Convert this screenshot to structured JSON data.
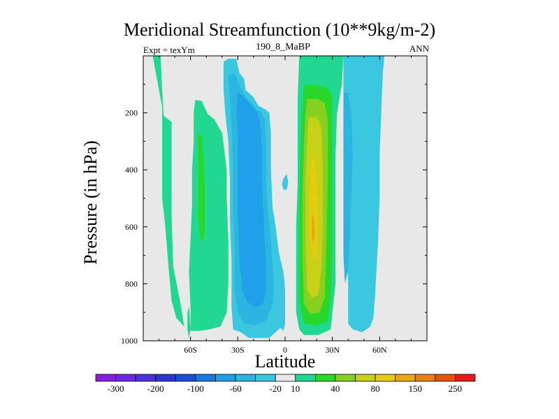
{
  "chart_data": {
    "type": "contour",
    "title": "Meridional Streamfunction (10**9kg/m-2)",
    "left_label": "Expt = texYm",
    "center_label": "190_8_MaBP",
    "right_label": "ANN",
    "xlabel": "Latitude",
    "ylabel": "Pressure (in hPa)",
    "x_range": [
      -90,
      90
    ],
    "y_range": [
      0,
      1000
    ],
    "y_reversed": true,
    "x_ticks": [
      {
        "value": -60,
        "label": "60S"
      },
      {
        "value": -30,
        "label": "30S"
      },
      {
        "value": 0,
        "label": "0"
      },
      {
        "value": 30,
        "label": "30N"
      },
      {
        "value": 60,
        "label": "60N"
      }
    ],
    "y_ticks": [
      {
        "value": 200,
        "label": "200"
      },
      {
        "value": 400,
        "label": "400"
      },
      {
        "value": 600,
        "label": "600"
      },
      {
        "value": 800,
        "label": "800"
      },
      {
        "value": 1000,
        "label": "1000"
      }
    ],
    "colorbar": {
      "colors": [
        "#8a1ee0",
        "#6a28e8",
        "#4a32e0",
        "#2838d0",
        "#1a50d8",
        "#1a78e0",
        "#20a0e8",
        "#2ab6e0",
        "#3ac8e0",
        "#e8e8e8",
        "#20d890",
        "#28d828",
        "#88d020",
        "#c8d018",
        "#e6cc10",
        "#e8a810",
        "#e88010",
        "#e85010",
        "#e81818"
      ],
      "labels": [
        {
          "after_index": 0,
          "text": "-300"
        },
        {
          "after_index": 2,
          "text": "-200"
        },
        {
          "after_index": 4,
          "text": "-100"
        },
        {
          "after_index": 6,
          "text": "-60"
        },
        {
          "after_index": 8,
          "text": "-20"
        },
        {
          "after_index": 9,
          "text": "10"
        },
        {
          "after_index": 11,
          "text": "40"
        },
        {
          "after_index": 13,
          "text": "80"
        },
        {
          "after_index": 15,
          "text": "150"
        },
        {
          "after_index": 17,
          "text": "250"
        }
      ]
    },
    "regions": [
      {
        "name": "sh-polar-positive",
        "level": 10,
        "color": "#20d890",
        "outline": [
          [
            -84,
            0
          ],
          [
            -79,
            0
          ],
          [
            -78,
            120
          ],
          [
            -77,
            210
          ],
          [
            -72,
            232
          ],
          [
            -72,
            350
          ],
          [
            -72,
            560
          ],
          [
            -71,
            740
          ],
          [
            -66,
            880
          ],
          [
            -64,
            950
          ],
          [
            -69,
            920
          ],
          [
            -72,
            860
          ],
          [
            -74,
            740
          ],
          [
            -76,
            600
          ],
          [
            -78,
            500
          ],
          [
            -78,
            300
          ],
          [
            -78,
            180
          ]
        ]
      },
      {
        "name": "sh-ferrel-positive",
        "level": 10,
        "color": "#20d890",
        "outline": [
          [
            -57,
            155
          ],
          [
            -53,
            158
          ],
          [
            -49,
            205
          ],
          [
            -45,
            222
          ],
          [
            -40,
            270
          ],
          [
            -37,
            400
          ],
          [
            -37,
            500
          ],
          [
            -36,
            650
          ],
          [
            -36,
            800
          ],
          [
            -37,
            900
          ],
          [
            -41,
            950
          ],
          [
            -48,
            960
          ],
          [
            -54,
            965
          ],
          [
            -60,
            965
          ],
          [
            -60,
            880
          ],
          [
            -61,
            760
          ],
          [
            -60,
            640
          ],
          [
            -59,
            520
          ],
          [
            -59,
            400
          ],
          [
            -58,
            300
          ],
          [
            -58,
            200
          ]
        ]
      },
      {
        "name": "sh-ferrel-core",
        "level": 40,
        "color": "#28d828",
        "outline": [
          [
            -55,
            270
          ],
          [
            -53,
            280
          ],
          [
            -52,
            350
          ],
          [
            -51,
            450
          ],
          [
            -51,
            550
          ],
          [
            -51,
            620
          ],
          [
            -52,
            650
          ],
          [
            -54,
            640
          ],
          [
            -55,
            560
          ],
          [
            -55,
            450
          ],
          [
            -55,
            350
          ]
        ]
      },
      {
        "name": "sh-polar-band-low",
        "level": 10,
        "color": "#20d890",
        "outline": [
          [
            -61,
            880
          ],
          [
            -60,
            960
          ],
          [
            -61,
            990
          ],
          [
            -62,
            960
          ],
          [
            -62,
            900
          ]
        ]
      },
      {
        "name": "sh-hadley-negative",
        "level": -20,
        "color": "#3ac8e0",
        "outline": [
          [
            -39,
            20
          ],
          [
            -36,
            10
          ],
          [
            -31,
            10
          ],
          [
            -29,
            60
          ],
          [
            -26,
            80
          ],
          [
            -25,
            120
          ],
          [
            -20,
            145
          ],
          [
            -17,
            175
          ],
          [
            -12,
            190
          ],
          [
            -10,
            200
          ],
          [
            -9,
            270
          ],
          [
            -9,
            400
          ],
          [
            -8,
            530
          ],
          [
            -6,
            600
          ],
          [
            -4,
            690
          ],
          [
            -1,
            760
          ],
          [
            0,
            820
          ],
          [
            0,
            940
          ],
          [
            -1,
            965
          ],
          [
            -3,
            955
          ],
          [
            -7,
            975
          ],
          [
            -10,
            990
          ],
          [
            -19,
            990
          ],
          [
            -23,
            990
          ],
          [
            -28,
            970
          ],
          [
            -33,
            960
          ],
          [
            -34,
            880
          ],
          [
            -34,
            720
          ],
          [
            -35,
            580
          ],
          [
            -35,
            440
          ],
          [
            -36,
            300
          ],
          [
            -38,
            200
          ],
          [
            -39,
            120
          ]
        ]
      },
      {
        "name": "sh-hadley-mid",
        "level": -60,
        "color": "#2ab6e0",
        "outline": [
          [
            -36,
            70
          ],
          [
            -32,
            60
          ],
          [
            -29,
            100
          ],
          [
            -25,
            145
          ],
          [
            -21,
            165
          ],
          [
            -18,
            190
          ],
          [
            -15,
            200
          ],
          [
            -13,
            225
          ],
          [
            -12,
            300
          ],
          [
            -12,
            420
          ],
          [
            -11,
            540
          ],
          [
            -9,
            640
          ],
          [
            -8,
            720
          ],
          [
            -7,
            810
          ],
          [
            -8,
            880
          ],
          [
            -10,
            900
          ],
          [
            -12,
            930
          ],
          [
            -19,
            945
          ],
          [
            -26,
            940
          ],
          [
            -30,
            900
          ],
          [
            -32,
            820
          ],
          [
            -32,
            680
          ],
          [
            -33,
            520
          ],
          [
            -33,
            380
          ],
          [
            -34,
            250
          ],
          [
            -35,
            150
          ]
        ]
      },
      {
        "name": "sh-hadley-strong",
        "level": -100,
        "color": "#20a0e8",
        "outline": [
          [
            -30,
            130
          ],
          [
            -27,
            140
          ],
          [
            -22,
            170
          ],
          [
            -18,
            195
          ],
          [
            -16,
            230
          ],
          [
            -15,
            300
          ],
          [
            -15,
            400
          ],
          [
            -14,
            520
          ],
          [
            -13,
            640
          ],
          [
            -12,
            740
          ],
          [
            -12,
            820
          ],
          [
            -14,
            870
          ],
          [
            -18,
            880
          ],
          [
            -23,
            870
          ],
          [
            -27,
            830
          ],
          [
            -29,
            720
          ],
          [
            -30,
            560
          ],
          [
            -30,
            420
          ],
          [
            -30,
            280
          ],
          [
            -31,
            190
          ]
        ]
      },
      {
        "name": "hadley-equator-cell",
        "level": -20,
        "color": "#3ac8e0",
        "outline": [
          [
            -1,
            430
          ],
          [
            1,
            415
          ],
          [
            2,
            445
          ],
          [
            1,
            470
          ],
          [
            -1,
            470
          ],
          [
            -2,
            450
          ]
        ]
      },
      {
        "name": "nh-hadley-positive",
        "level": 10,
        "color": "#20d890",
        "outline": [
          [
            9,
            0
          ],
          [
            37,
            0
          ],
          [
            36,
            100
          ],
          [
            33,
            200
          ],
          [
            32,
            350
          ],
          [
            32,
            500
          ],
          [
            32,
            650
          ],
          [
            32,
            800
          ],
          [
            30,
            900
          ],
          [
            29,
            960
          ],
          [
            21,
            980
          ],
          [
            12,
            980
          ],
          [
            9,
            960
          ],
          [
            7,
            900
          ],
          [
            7,
            750
          ],
          [
            7,
            600
          ],
          [
            8,
            450
          ],
          [
            8,
            300
          ],
          [
            8,
            150
          ]
        ]
      },
      {
        "name": "nh-hadley-mid",
        "level": 40,
        "color": "#28d828",
        "outline": [
          [
            12,
            100
          ],
          [
            22,
            105
          ],
          [
            27,
            115
          ],
          [
            30,
            140
          ],
          [
            30,
            200
          ],
          [
            30,
            400
          ],
          [
            30,
            650
          ],
          [
            29,
            850
          ],
          [
            27,
            930
          ],
          [
            20,
            945
          ],
          [
            12,
            940
          ],
          [
            9,
            860
          ],
          [
            9,
            700
          ],
          [
            9,
            500
          ],
          [
            10,
            300
          ],
          [
            11,
            180
          ]
        ]
      },
      {
        "name": "nh-hadley-strong",
        "level": 80,
        "color": "#88d020",
        "outline": [
          [
            14,
            150
          ],
          [
            21,
            152
          ],
          [
            25,
            165
          ],
          [
            27,
            220
          ],
          [
            27,
            450
          ],
          [
            26,
            700
          ],
          [
            25,
            850
          ],
          [
            22,
            900
          ],
          [
            16,
            905
          ],
          [
            12,
            870
          ],
          [
            11,
            700
          ],
          [
            11,
            500
          ],
          [
            12,
            300
          ],
          [
            13,
            200
          ]
        ]
      },
      {
        "name": "nh-hadley-core",
        "level": 100,
        "color": "#c8d018",
        "outline": [
          [
            15,
            215
          ],
          [
            20,
            215
          ],
          [
            23,
            250
          ],
          [
            24,
            400
          ],
          [
            24,
            600
          ],
          [
            23,
            750
          ],
          [
            21,
            840
          ],
          [
            17,
            850
          ],
          [
            14,
            820
          ],
          [
            13,
            650
          ],
          [
            13,
            450
          ],
          [
            14,
            300
          ]
        ]
      },
      {
        "name": "nh-hadley-peak",
        "level": 150,
        "color": "#e6cc10",
        "outline": [
          [
            17,
            360
          ],
          [
            19,
            360
          ],
          [
            20,
            460
          ],
          [
            21,
            580
          ],
          [
            20,
            700
          ],
          [
            18,
            720
          ],
          [
            16,
            640
          ],
          [
            16,
            520
          ],
          [
            16,
            430
          ]
        ]
      },
      {
        "name": "nh-hadley-max",
        "level": 200,
        "color": "#e8a810",
        "outline": [
          [
            17,
            560
          ],
          [
            18,
            560
          ],
          [
            19,
            620
          ],
          [
            18,
            660
          ],
          [
            17,
            640
          ]
        ]
      },
      {
        "name": "nh-ferrel-negative",
        "level": -20,
        "color": "#3ac8e0",
        "outline": [
          [
            37,
            0
          ],
          [
            63,
            0
          ],
          [
            62,
            60
          ],
          [
            61,
            200
          ],
          [
            60,
            350
          ],
          [
            60,
            500
          ],
          [
            59,
            650
          ],
          [
            58,
            750
          ],
          [
            57,
            850
          ],
          [
            56,
            920
          ],
          [
            54,
            950
          ],
          [
            49,
            970
          ],
          [
            43,
            960
          ],
          [
            40,
            940
          ],
          [
            40,
            800
          ],
          [
            39,
            650
          ],
          [
            39,
            500
          ],
          [
            38,
            350
          ],
          [
            37,
            200
          ],
          [
            37,
            100
          ]
        ]
      },
      {
        "name": "nh-ferrel-core",
        "level": -60,
        "color": "#2ab6e0",
        "outline": [
          [
            37,
            130
          ],
          [
            40,
            130
          ],
          [
            42,
            200
          ],
          [
            43,
            350
          ],
          [
            42,
            500
          ],
          [
            41,
            650
          ],
          [
            40,
            750
          ],
          [
            38,
            800
          ],
          [
            37,
            700
          ],
          [
            37,
            500
          ],
          [
            37,
            300
          ]
        ]
      }
    ]
  }
}
